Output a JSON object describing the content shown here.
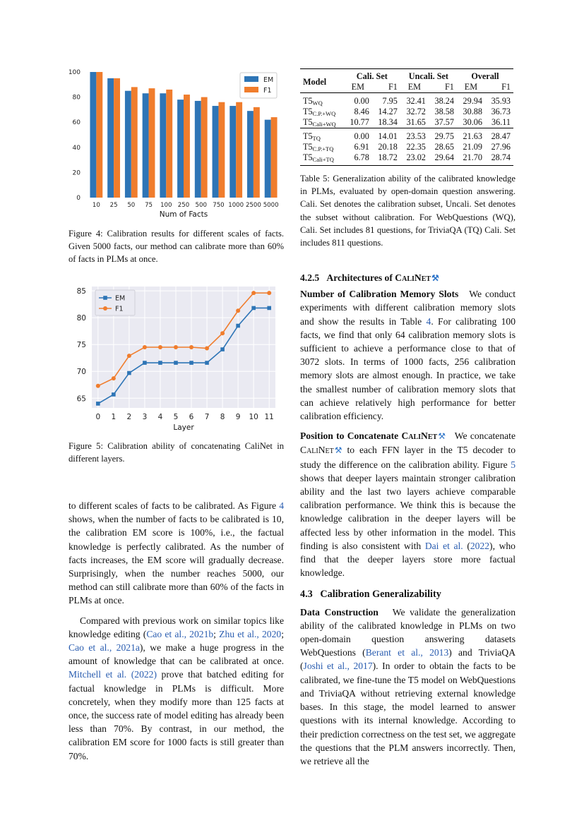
{
  "charts": {
    "fig4": {
      "type": "bar",
      "categories": [
        "10",
        "25",
        "50",
        "75",
        "100",
        "250",
        "500",
        "750",
        "1000",
        "2500",
        "5000"
      ],
      "series": [
        {
          "name": "EM",
          "values": [
            100,
            95,
            85,
            83,
            83,
            78,
            77,
            73,
            73,
            69,
            62
          ],
          "color": "#2e75b6"
        },
        {
          "name": "F1",
          "values": [
            100,
            95,
            88,
            87,
            86,
            82,
            80,
            76,
            76,
            72,
            64
          ],
          "color": "#f07d2d"
        }
      ],
      "xlabel": "Num of Facts",
      "ylim": [
        0,
        100
      ],
      "yticks": [
        "0",
        "20",
        "40",
        "60",
        "80",
        "100"
      ],
      "legend": "top-right"
    },
    "fig5": {
      "type": "line",
      "x": [
        0,
        1,
        2,
        3,
        4,
        5,
        6,
        7,
        8,
        9,
        10,
        11
      ],
      "x_ticklabels": [
        "0",
        "1",
        "2",
        "3",
        "4",
        "5",
        "6",
        "7",
        "8",
        "9",
        "10",
        "11"
      ],
      "series": [
        {
          "name": "EM",
          "values": [
            64.0,
            65.7,
            69.7,
            71.6,
            71.6,
            71.6,
            71.6,
            71.6,
            74.1,
            78.5,
            81.8,
            81.8
          ],
          "color": "#2e75b6",
          "marker": "square"
        },
        {
          "name": "F1",
          "values": [
            67.3,
            68.7,
            72.9,
            74.5,
            74.5,
            74.5,
            74.5,
            74.3,
            77.1,
            81.3,
            84.6,
            84.6
          ],
          "color": "#f07d2d",
          "marker": "circle"
        }
      ],
      "xlabel": "Layer",
      "ylim": [
        63.2,
        85.8
      ],
      "yticks": [
        "65",
        "70",
        "75",
        "80",
        "85"
      ],
      "ytick_values": [
        65,
        70,
        75,
        80,
        85
      ],
      "legend": "top-left",
      "grid": true
    }
  },
  "captions": {
    "fig4": "Figure 4: Calibration results for different scales of facts. Given 5000 facts, our method can calibrate more than 60% of facts in PLMs at once.",
    "fig5": "Figure 5: Calibration ability of concatenating CaliNet in different layers.",
    "table5": "Table 5: Generalization ability of the calibrated knowledge in PLMs, evaluated by open-domain question answering. Cali. Set denotes the calibration subset, Uncali. Set denotes the subset without calibration. For WebQuestions (WQ), Cali. Set includes 81 questions, for TriviaQA (TQ) Cali. Set includes 811 questions."
  },
  "table5": {
    "col_model": "Model",
    "groups": [
      "Cali. Set",
      "Uncali. Set",
      "Overall"
    ],
    "sub": [
      "EM",
      "F1",
      "EM",
      "F1",
      "EM",
      "F1"
    ],
    "rows_wq": [
      {
        "base": "T5",
        "sub": "WQ",
        "vals": [
          "0.00",
          "7.95",
          "32.41",
          "38.24",
          "29.94",
          "35.93"
        ]
      },
      {
        "base": "T5",
        "sub": "C.P.+WQ",
        "vals": [
          "8.46",
          "14.27",
          "32.72",
          "38.58",
          "30.88",
          "36.73"
        ]
      },
      {
        "base": "T5",
        "sub": "Cali+WQ",
        "vals": [
          "10.77",
          "18.34",
          "31.65",
          "37.57",
          "30.06",
          "36.11"
        ]
      }
    ],
    "rows_tq": [
      {
        "base": "T5",
        "sub": "TQ",
        "vals": [
          "0.00",
          "14.01",
          "23.53",
          "29.75",
          "21.63",
          "28.47"
        ]
      },
      {
        "base": "T5",
        "sub": "C.P.+TQ",
        "vals": [
          "6.91",
          "20.18",
          "22.35",
          "28.65",
          "21.09",
          "27.96"
        ]
      },
      {
        "base": "T5",
        "sub": "Cali+TQ",
        "vals": [
          "6.78",
          "18.72",
          "23.02",
          "29.64",
          "21.70",
          "28.74"
        ]
      }
    ]
  },
  "left": {
    "p1": {
      "a": "to different scales of facts to be calibrated. As Figure ",
      "ref": "4",
      "b": " shows, when the number of facts to be calibrated is 10, the calibration EM score is 100%, i.e., the factual knowledge is perfectly calibrated. As the number of facts increases, the EM score will gradually decrease. Surprisingly, when the number reaches 5000, our method can still calibrate more than 60% of the facts in PLMs at once."
    },
    "p2": {
      "a": "Compared with previous work on similar topics like knowledge editing (",
      "c1": "Cao et al., 2021b",
      "sep1": "; ",
      "c2": "Zhu et al., 2020",
      "sep2": "; ",
      "c3": "Cao et al., 2021a",
      "b": "), we make a huge progress in the amount of knowledge that can be calibrated at once. ",
      "c4": "Mitchell et al. (2022)",
      "c": " prove that batched editing for factual knowledge in PLMs is difficult. More concretely, when they modify more than 125 facts at once, the success rate of model editing has already been less than 70%. By contrast, in our method, the calibration EM score for 1000 facts is still greater than 70%."
    }
  },
  "right": {
    "sec425": {
      "num": "4.2.5",
      "title": "Architectures of ",
      "name": "CaliNet",
      "icon": "tools-icon"
    },
    "slots": {
      "head": "Number of Calibration Memory Slots",
      "a": "We conduct experiments with different calibration memory slots and show the results in Table ",
      "ref": "4",
      "b": ". For calibrating 100 facts, we find that only 64 calibration memory slots is sufficient to achieve a performance close to that of 3072 slots. In terms of 1000 facts, 256 calibration memory slots are almost enough. In practice, we take the smallest number of calibration memory slots that can achieve relatively high performance for better calibration efficiency."
    },
    "position": {
      "head": "Position to Concatenate ",
      "name": "CaliNet",
      "a": "We concatenate ",
      "name2": "CaliNet",
      "b": " to each FFN layer in the T5 decoder to study the difference on the calibration ability. Figure ",
      "ref": "5",
      "c": " shows that deeper layers maintain stronger calibration ability and the last two layers achieve comparable calibration performance. We think this is because the knowledge calibration in the deeper layers will be affected less by other information in the model. This finding is also consistent with ",
      "c1": "Dai et al.",
      "c1p": " (",
      "c1y": "2022",
      "c1e": ")",
      "d": ", who find that the deeper layers store more factual knowledge."
    },
    "sec43": {
      "num": "4.3",
      "title": "Calibration Generalizability"
    },
    "data": {
      "head": "Data Construction",
      "a": "We validate the generalization ability of the calibrated knowledge in PLMs on two open-domain question answering datasets WebQuestions (",
      "c1": "Berant et al., 2013",
      "b": ") and TriviaQA (",
      "c2": "Joshi et al., 2017",
      "c": "). In order to obtain the facts to be calibrated, we fine-tune the T5 model on WebQuestions and TriviaQA without retrieving external knowledge bases. In this stage, the model learned to answer questions with its internal knowledge. According to their prediction correctness on the test set, we aggregate the questions that the PLM answers incorrectly. Then, we retrieve all the"
    }
  }
}
